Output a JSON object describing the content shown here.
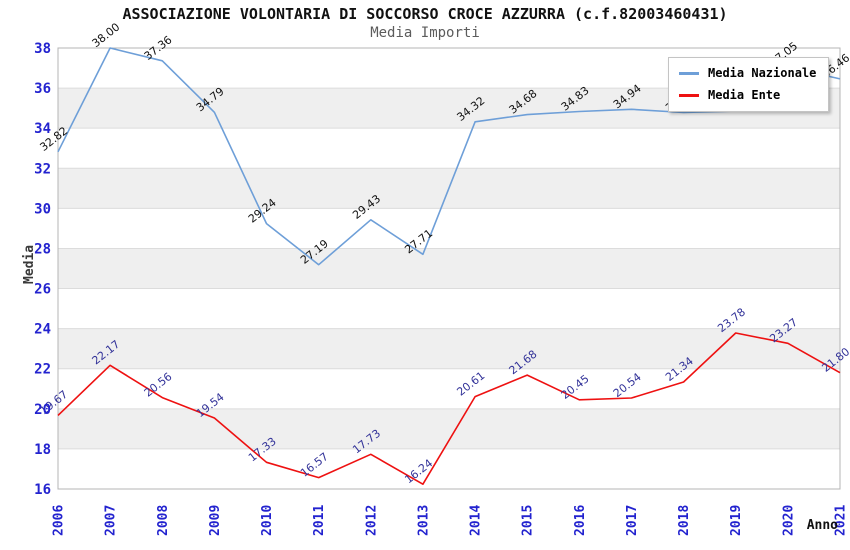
{
  "header": {
    "title": "ASSOCIAZIONE VOLONTARIA DI SOCCORSO CROCE AZZURRA (c.f.82003460431)",
    "subtitle": "Media Importi"
  },
  "chart_data": {
    "type": "line",
    "title": "ASSOCIAZIONE VOLONTARIA DI SOCCORSO CROCE AZZURRA (c.f.82003460431)",
    "subtitle": "Media Importi",
    "xlabel": "Anno",
    "ylabel": "Media",
    "x": [
      "2006",
      "2007",
      "2008",
      "2009",
      "2010",
      "2011",
      "2012",
      "2013",
      "2014",
      "2015",
      "2016",
      "2017",
      "2018",
      "2019",
      "2020",
      "2021"
    ],
    "series": [
      {
        "name": "Media Nazionale",
        "color": "#6e9fd8",
        "label_color": "#111111",
        "values": [
          32.82,
          38.0,
          37.36,
          34.79,
          29.24,
          27.19,
          29.43,
          27.71,
          34.32,
          34.68,
          34.83,
          34.94,
          34.78,
          34.85,
          37.05,
          36.46
        ]
      },
      {
        "name": "Media Ente",
        "color": "#ee1111",
        "label_color": "#333399",
        "values": [
          19.67,
          22.17,
          20.56,
          19.54,
          17.33,
          16.57,
          17.73,
          16.24,
          20.61,
          21.68,
          20.45,
          20.54,
          21.34,
          23.78,
          23.27,
          21.8
        ]
      }
    ],
    "ylim": [
      16,
      38
    ],
    "ytick_step": 2,
    "grid": "horizontal, alternating shaded bands every 2 units",
    "legend_position": "top-right",
    "notes": "Blue-series data labels for 2018 and 2019 are hidden behind the legend box in the original; their values are estimated from line position."
  },
  "colors": {
    "axis_tick_text": "#2323cf",
    "band_fill": "#efefef",
    "gridline": "#dcdcdc",
    "plot_border": "#b4b4b4",
    "background": "#ffffff"
  }
}
